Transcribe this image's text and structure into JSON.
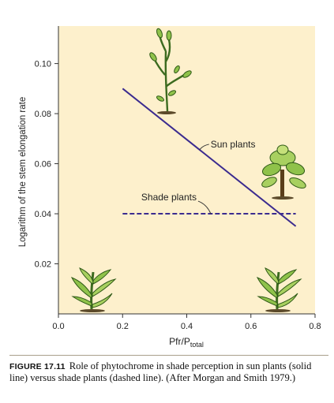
{
  "chart_data": {
    "type": "line",
    "title": "",
    "xlabel": "Pfr/Ptotal",
    "xlabel_main": "Pfr/P",
    "xlabel_sub": "total",
    "ylabel": "Logarithm of the stem elongation rate",
    "xlim": [
      0.0,
      0.8
    ],
    "ylim": [
      0.0,
      0.115
    ],
    "x_ticks": [
      0.0,
      0.2,
      0.4,
      0.6,
      0.8
    ],
    "x_tick_labels": [
      "0.0",
      "0.2",
      "0.4",
      "0.6",
      "0.8"
    ],
    "y_ticks": [
      0.02,
      0.04,
      0.06,
      0.08,
      0.1
    ],
    "y_tick_labels": [
      "0.02",
      "0.04",
      "0.06",
      "0.08",
      "0.10"
    ],
    "grid": false,
    "series": [
      {
        "name": "Sun plants",
        "style": "solid",
        "x": [
          0.2,
          0.74
        ],
        "y": [
          0.09,
          0.035
        ]
      },
      {
        "name": "Shade plants",
        "style": "dashed",
        "x": [
          0.2,
          0.74
        ],
        "y": [
          0.04,
          0.04
        ]
      }
    ],
    "annotations": [
      {
        "text": "Sun plants",
        "series": "Sun plants"
      },
      {
        "text": "Shade plants",
        "series": "Shade plants"
      }
    ],
    "colors": {
      "plot_background": "#fdf0cc",
      "line": "#3b2b8f",
      "axis": "#333333"
    }
  },
  "caption": {
    "label": "FIGURE 17.11",
    "text": "Role of phytochrome in shade perception in sun plants (solid line) versus shade plants (dashed line). (After Morgan and Smith 1979.)"
  }
}
